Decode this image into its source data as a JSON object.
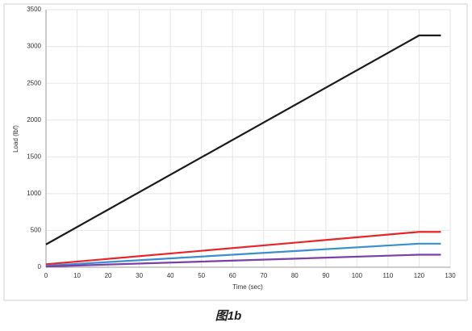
{
  "chart_data": {
    "type": "line",
    "x_label": "Time (sec)",
    "y_label": "Load (lbf)",
    "caption": "图1b",
    "x": [
      0,
      120,
      127
    ],
    "series": [
      {
        "color": "#1a1a1a",
        "values": [
          310,
          3150,
          3150
        ]
      },
      {
        "color": "#e8262a",
        "values": [
          40,
          480,
          480
        ]
      },
      {
        "color": "#3a8fd0",
        "values": [
          20,
          320,
          320
        ]
      },
      {
        "color": "#7b3fa8",
        "values": [
          10,
          170,
          170
        ]
      }
    ],
    "xlim": [
      0,
      130
    ],
    "xticks": [
      0,
      10,
      20,
      30,
      40,
      50,
      60,
      70,
      80,
      90,
      100,
      110,
      120,
      130
    ],
    "ylim": [
      0,
      3500
    ],
    "yticks": [
      0,
      500,
      1000,
      1500,
      2000,
      2500,
      3000,
      3500
    ],
    "grid": true
  }
}
